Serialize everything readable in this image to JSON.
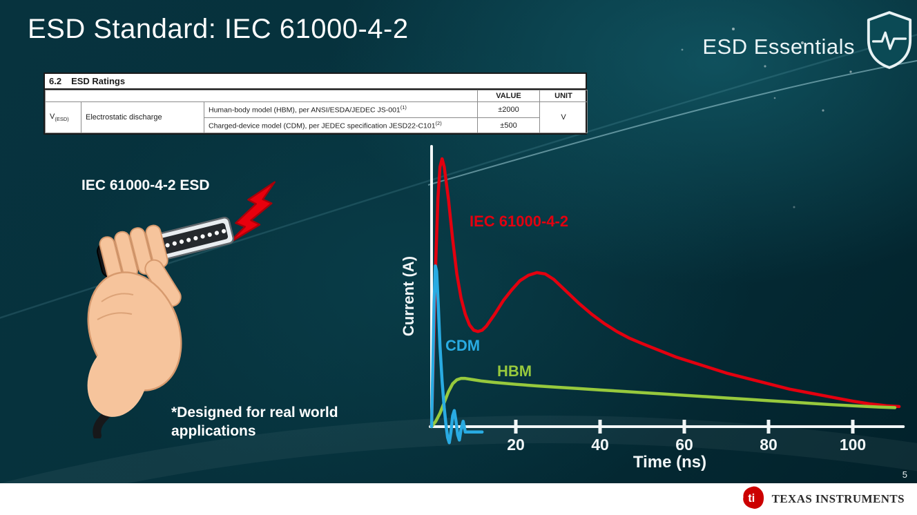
{
  "slide": {
    "title": "ESD Standard: IEC 61000-4-2",
    "brand": "ESD Essentials",
    "page_number": "5"
  },
  "ratings_table": {
    "section_number": "6.2",
    "section_title": "ESD Ratings",
    "col_value": "VALUE",
    "col_unit": "UNIT",
    "param_symbol": "V",
    "param_symbol_sub": "(ESD)",
    "param_name": "Electrostatic discharge",
    "rows": [
      {
        "description": "Human-body model (HBM), per ANSI/ESDA/JEDEC JS-001",
        "sup": "(1)",
        "value": "±2000"
      },
      {
        "description": "Charged-device model (CDM), per JEDEC specification JESD22-C101",
        "sup": "(2)",
        "value": "±500"
      }
    ],
    "unit": "V"
  },
  "left_panel": {
    "caption": "IEC 61000-4-2 ESD",
    "footnote": "*Designed for real world applications"
  },
  "icons": {
    "shield": "esd-shield-pulse-icon",
    "bolt": "lightning-bolt-icon",
    "ti_logo": "texas-instruments-logo"
  },
  "footer": {
    "company": "TEXAS INSTRUMENTS"
  },
  "colors": {
    "iec_red": "#e3000f",
    "cdm_blue": "#29abe2",
    "hbm_green": "#97c93d",
    "axis_white": "#f2f7f8",
    "ti_red": "#cc0000",
    "background_teal": "#06313c"
  },
  "chart_data": {
    "type": "line",
    "title": "",
    "xlabel": "Time (ns)",
    "ylabel": "Current (A)",
    "x_ticks": [
      20,
      40,
      60,
      80,
      100
    ],
    "xlim": [
      0,
      112
    ],
    "ylim": [
      -0.08,
      1.05
    ],
    "grid": false,
    "legend_position": "inline-labels",
    "axis_color": "#f2f7f8",
    "series": [
      {
        "name": "IEC 61000-4-2",
        "color": "#e3000f",
        "x": [
          0,
          0.5,
          1,
          1.5,
          2,
          2.5,
          3,
          4,
          5,
          6,
          7,
          8,
          9,
          10,
          11,
          12,
          13,
          15,
          17,
          19,
          21,
          23,
          25,
          27,
          29,
          31,
          33,
          35,
          38,
          41,
          44,
          47,
          50,
          54,
          58,
          62,
          66,
          70,
          75,
          80,
          85,
          90,
          95,
          100,
          104,
          108,
          111
        ],
        "y": [
          0,
          0.3,
          0.62,
          0.85,
          0.97,
          1.0,
          0.97,
          0.85,
          0.7,
          0.57,
          0.48,
          0.42,
          0.38,
          0.36,
          0.355,
          0.36,
          0.375,
          0.42,
          0.47,
          0.51,
          0.545,
          0.565,
          0.575,
          0.57,
          0.55,
          0.52,
          0.49,
          0.46,
          0.42,
          0.385,
          0.355,
          0.33,
          0.31,
          0.285,
          0.26,
          0.24,
          0.22,
          0.2,
          0.18,
          0.16,
          0.14,
          0.125,
          0.11,
          0.095,
          0.085,
          0.078,
          0.075
        ]
      },
      {
        "name": "CDM",
        "color": "#29abe2",
        "x": [
          0,
          0.3,
          0.6,
          0.9,
          1.2,
          1.6,
          2.0,
          2.5,
          3.0,
          3.4,
          3.8,
          4.2,
          4.6,
          5.0,
          5.4,
          5.8,
          6.2,
          6.6,
          7.0,
          7.5,
          8.0,
          9.0,
          10.0,
          11.0,
          12.0
        ],
        "y": [
          0,
          0.22,
          0.46,
          0.6,
          0.58,
          0.45,
          0.3,
          0.17,
          0.07,
          0.01,
          -0.04,
          -0.06,
          -0.02,
          0.04,
          0.06,
          0.02,
          -0.03,
          -0.05,
          -0.01,
          0.02,
          -0.02,
          -0.02,
          -0.02,
          -0.02,
          -0.02
        ]
      },
      {
        "name": "HBM",
        "color": "#97c93d",
        "x": [
          0,
          1,
          2,
          3,
          4,
          5,
          6,
          7,
          8,
          10,
          12,
          15,
          20,
          25,
          30,
          35,
          40,
          45,
          50,
          55,
          60,
          65,
          70,
          75,
          80,
          85,
          90,
          95,
          100,
          105,
          110
        ],
        "y": [
          0,
          0.02,
          0.05,
          0.09,
          0.13,
          0.16,
          0.175,
          0.18,
          0.18,
          0.175,
          0.17,
          0.165,
          0.158,
          0.152,
          0.147,
          0.142,
          0.137,
          0.132,
          0.127,
          0.122,
          0.117,
          0.112,
          0.107,
          0.102,
          0.097,
          0.092,
          0.087,
          0.082,
          0.078,
          0.074,
          0.071
        ]
      }
    ]
  }
}
